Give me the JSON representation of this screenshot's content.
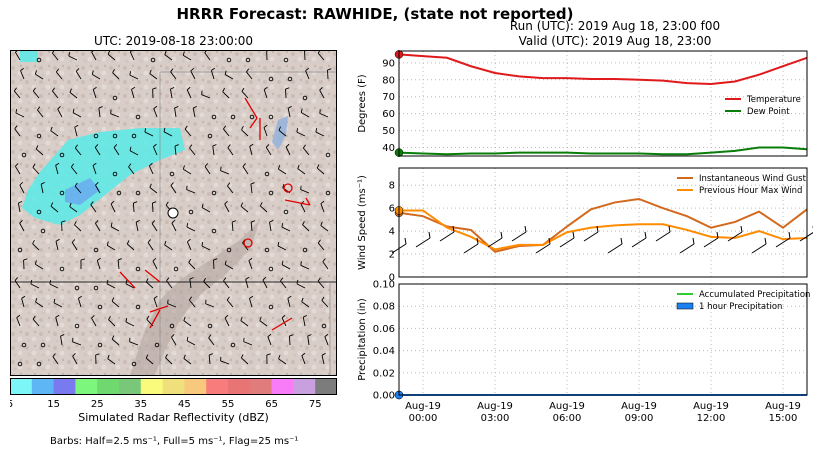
{
  "title": "HRRR Forecast: RAWHIDE, (state not reported)",
  "run_label": "Run (UTC): 2019 Aug 18, 23:00 f00",
  "valid_label": "Valid (UTC): 2019 Aug 18, 23:00",
  "map": {
    "title": "UTC: 2019-08-18 23:00:00",
    "colorbar": {
      "label": "Simulated Radar Reflectivity (dBZ)",
      "ticks": [
        "5",
        "15",
        "25",
        "35",
        "45",
        "55",
        "65",
        "75"
      ],
      "colors": [
        "#7cf6f6",
        "#5fb6f5",
        "#7a7af0",
        "#7cf67c",
        "#6fd86f",
        "#79c879",
        "#fafa7c",
        "#f0e07c",
        "#f8c87c",
        "#f87c7c",
        "#e87474",
        "#e07c7c",
        "#f87cf8",
        "#c8a0e0",
        "#7c7c7c"
      ]
    },
    "barb_note": "Barbs: Half=2.5 ms⁻¹, Full=5 ms⁻¹, Flag=25 ms⁻¹"
  },
  "chart_data": [
    {
      "type": "line",
      "ylabel": "Degrees (F)",
      "ylim": [
        35,
        97
      ],
      "yticks": [
        "40",
        "50",
        "60",
        "70",
        "80",
        "90"
      ],
      "grid": true,
      "legend_position": "center-right",
      "series": [
        {
          "name": "Temperature",
          "color": "#e0191b",
          "x": [
            0,
            1,
            2,
            3,
            4,
            5,
            6,
            7,
            8,
            9,
            10,
            11,
            12,
            13,
            14,
            15,
            16,
            17
          ],
          "y": [
            95,
            94,
            93,
            88,
            84,
            82,
            81,
            81,
            80.5,
            80.5,
            80,
            79.5,
            78,
            77.5,
            79,
            83,
            88,
            93
          ]
        },
        {
          "name": "Dew Point",
          "color": "#087d08",
          "x": [
            0,
            1,
            2,
            3,
            4,
            5,
            6,
            7,
            8,
            9,
            10,
            11,
            12,
            13,
            14,
            15,
            16,
            17
          ],
          "y": [
            37,
            36.5,
            36,
            36.5,
            36.5,
            37,
            37,
            37,
            36.5,
            36.5,
            36.5,
            36,
            36,
            37,
            38,
            40,
            40,
            39
          ]
        }
      ]
    },
    {
      "type": "line",
      "ylabel": "Wind Speed (ms⁻¹)",
      "ylim": [
        0,
        9.5
      ],
      "yticks": [
        "0",
        "2",
        "4",
        "6",
        "8"
      ],
      "grid": true,
      "legend_position": "top-right",
      "series": [
        {
          "name": "Instantaneous Wind Gust",
          "color": "#d2691e",
          "x": [
            0,
            1,
            2,
            3,
            4,
            5,
            6,
            7,
            8,
            9,
            10,
            11,
            12,
            13,
            14,
            15,
            16,
            17
          ],
          "y": [
            5.6,
            5.3,
            4.4,
            4.1,
            2.2,
            2.7,
            2.8,
            4.4,
            5.9,
            6.5,
            6.8,
            6.0,
            5.3,
            4.3,
            4.8,
            5.7,
            4.3,
            5.9
          ]
        },
        {
          "name": "Previous Hour Max Wind",
          "color": "#ff8c00",
          "x": [
            0,
            1,
            2,
            3,
            4,
            5,
            6,
            7,
            8,
            9,
            10,
            11,
            12,
            13,
            14,
            15,
            16,
            17
          ],
          "y": [
            5.8,
            5.8,
            4.3,
            3.5,
            2.4,
            2.8,
            2.8,
            3.9,
            4.3,
            4.5,
            4.6,
            4.6,
            4.1,
            3.5,
            3.4,
            4.0,
            3.3,
            3.4
          ]
        }
      ]
    },
    {
      "type": "area",
      "ylabel": "Precipitation (in)",
      "ylim": [
        0,
        0.1
      ],
      "yticks": [
        "0.00",
        "0.02",
        "0.04",
        "0.06",
        "0.08",
        "0.10"
      ],
      "xticks": [
        {
          "x": 1,
          "date": "Aug-19",
          "time": "00:00"
        },
        {
          "x": 4,
          "date": "Aug-19",
          "time": "03:00"
        },
        {
          "x": 7,
          "date": "Aug-19",
          "time": "06:00"
        },
        {
          "x": 10,
          "date": "Aug-19",
          "time": "09:00"
        },
        {
          "x": 13,
          "date": "Aug-19",
          "time": "12:00"
        },
        {
          "x": 16,
          "date": "Aug-19",
          "time": "15:00"
        }
      ],
      "grid": true,
      "legend_position": "top-right",
      "series": [
        {
          "name": "Accumulated Precipitation",
          "color": "#32cd32",
          "x": [
            0,
            1,
            2,
            3,
            4,
            5,
            6,
            7,
            8,
            9,
            10,
            11,
            12,
            13,
            14,
            15,
            16,
            17
          ],
          "y": [
            0,
            0,
            0,
            0,
            0,
            0,
            0,
            0,
            0,
            0,
            0,
            0,
            0,
            0,
            0,
            0,
            0,
            0
          ]
        },
        {
          "name": "1 hour Precipitation",
          "color": "#1e7ff0",
          "x": [
            0,
            1,
            2,
            3,
            4,
            5,
            6,
            7,
            8,
            9,
            10,
            11,
            12,
            13,
            14,
            15,
            16,
            17
          ],
          "y": [
            0,
            0,
            0,
            0,
            0,
            0,
            0,
            0,
            0,
            0,
            0,
            0,
            0,
            0,
            0,
            0,
            0,
            0
          ]
        }
      ]
    }
  ]
}
